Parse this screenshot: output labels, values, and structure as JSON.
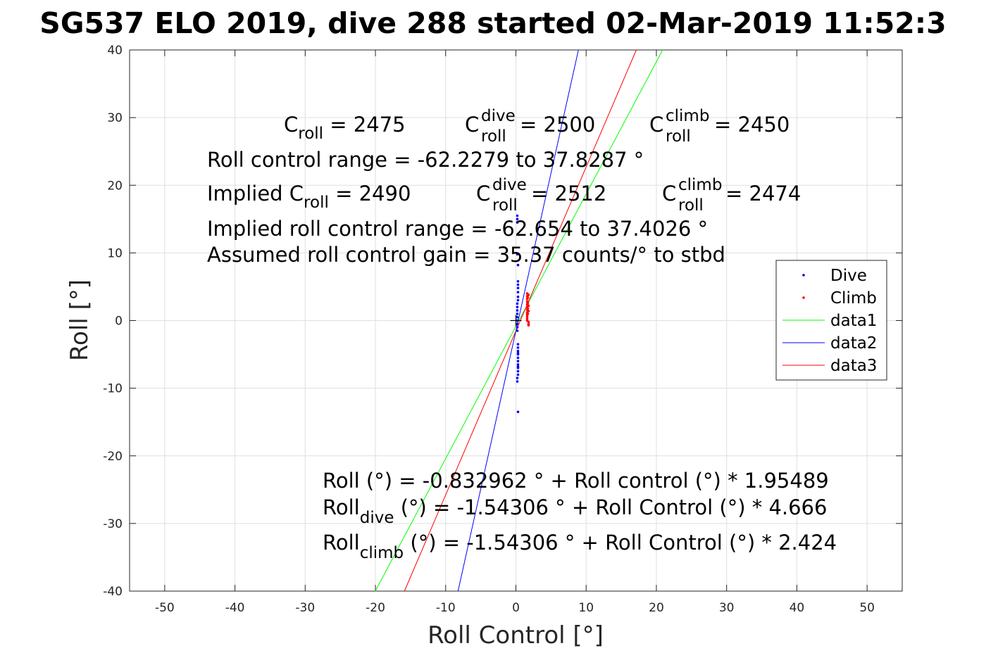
{
  "chart_data": {
    "type": "scatter",
    "title": "SG537 ELO 2019, dive 288 started 02-Mar-2019 11:52:3",
    "xlabel": "Roll Control [°]",
    "ylabel": "Roll [°]",
    "xlim": [
      -55,
      55
    ],
    "ylim": [
      -40,
      40
    ],
    "xticks": [
      -50,
      -40,
      -30,
      -20,
      -10,
      0,
      10,
      20,
      30,
      40,
      50
    ],
    "yticks": [
      -40,
      -30,
      -20,
      -10,
      0,
      10,
      20,
      30,
      40
    ],
    "xtick_labels": [
      "-50",
      "-40",
      "-30",
      "-20",
      "-10",
      "0",
      "10",
      "20",
      "30",
      "40",
      "50"
    ],
    "ytick_labels": [
      "-40",
      "-30",
      "-20",
      "-10",
      "0",
      "10",
      "20",
      "30",
      "40"
    ],
    "grid": true,
    "legend_placement": "right",
    "legend": [
      "Dive",
      "Climb",
      "data1",
      "data2",
      "data3"
    ],
    "series": [
      {
        "name": "Dive",
        "kind": "points",
        "color": "#0000ff",
        "x": [
          0.2,
          0.2,
          0.2,
          0.2,
          0.3,
          0.3,
          0.3,
          0.3,
          0.3,
          0.3,
          0.3,
          0.2,
          0.2,
          0.2,
          0.2,
          0.2,
          0.2,
          0.2,
          0.2,
          0.2,
          0.3,
          0.3,
          0.3,
          0.3,
          0.3,
          0.3,
          0.3,
          0.3,
          0.3,
          0.3,
          0.2,
          0.2,
          0.3,
          0.3,
          0.3
        ],
        "y": [
          15.5,
          15.0,
          14.5,
          9.8,
          8.2,
          5.8,
          5.3,
          4.8,
          4.2,
          3.5,
          3.0,
          2.5,
          2.0,
          1.5,
          1.0,
          0.5,
          0.0,
          -0.5,
          -1.0,
          -1.5,
          -3.5,
          -4.0,
          -4.5,
          -5.0,
          -5.5,
          -6.0,
          -6.5,
          -7.0,
          -7.5,
          -8.0,
          -8.5,
          -9.0,
          -6.8,
          -4.8,
          -13.5
        ]
      },
      {
        "name": "Climb",
        "kind": "points",
        "color": "#ff0000",
        "x": [
          1.6,
          1.6,
          1.6,
          1.6,
          1.6,
          1.6,
          1.6,
          1.6,
          1.6,
          1.6,
          1.6,
          1.6,
          1.7,
          1.7,
          1.7,
          1.7,
          1.8,
          1.8,
          1.8,
          1.8,
          1.8,
          1.8
        ],
        "y": [
          4.0,
          3.6,
          3.2,
          2.8,
          2.4,
          2.0,
          1.6,
          1.2,
          0.9,
          0.6,
          0.3,
          0.0,
          3.4,
          2.6,
          1.8,
          1.0,
          3.8,
          2.2,
          1.4,
          -0.2,
          -0.5,
          -0.7
        ]
      },
      {
        "name": "data1",
        "kind": "line",
        "color": "#00ff00",
        "x": [
          -20.02,
          20.89
        ],
        "y": [
          -40,
          40
        ]
      },
      {
        "name": "data2",
        "kind": "line",
        "color": "#0000ff",
        "x": [
          -8.24,
          8.9
        ],
        "y": [
          -40,
          40
        ]
      },
      {
        "name": "data3",
        "kind": "line",
        "color": "#ff0000",
        "x": [
          -15.87,
          17.14
        ],
        "y": [
          -40,
          40
        ]
      }
    ],
    "marker": {
      "name": "origin-cross",
      "x": 0,
      "y": 0
    }
  },
  "annotations": {
    "line1": {
      "c": "C",
      "c_sub": "roll",
      "eq1": " = 2475",
      "c2": "C",
      "c2_sup": "dive",
      "c2_sub": "roll",
      "eq2": " = 2500",
      "c3": "C",
      "c3_sup": "climb",
      "c3_sub": "roll",
      "eq3": " = 2450"
    },
    "line2": "Roll control range = -62.2279 to 37.8287 °",
    "line3": {
      "prefix": "Implied C",
      "sub": "roll",
      "eq1": " = 2490",
      "c2": "C",
      "c2_sup": "dive",
      "c2_sub": "roll",
      "eq2": " = 2512",
      "c3": "C",
      "c3_sup": "climb",
      "c3_sub": "roll",
      "eq3": " = 2474"
    },
    "line4": "Implied roll control range = -62.654 to 37.4026 °",
    "line5": "Assumed roll control gain = 35.37 counts/° to stbd",
    "fit1": "Roll (°) = -0.832962 ° + Roll control (°) * 1.95489",
    "fit2": {
      "pre": "Roll",
      "sub": "dive",
      "post": " (°) = -1.54306 ° + Roll Control (°) * 4.666"
    },
    "fit3": {
      "pre": "Roll",
      "sub": "climb",
      "post": " (°) = -1.54306 ° + Roll Control (°) * 2.424"
    }
  }
}
